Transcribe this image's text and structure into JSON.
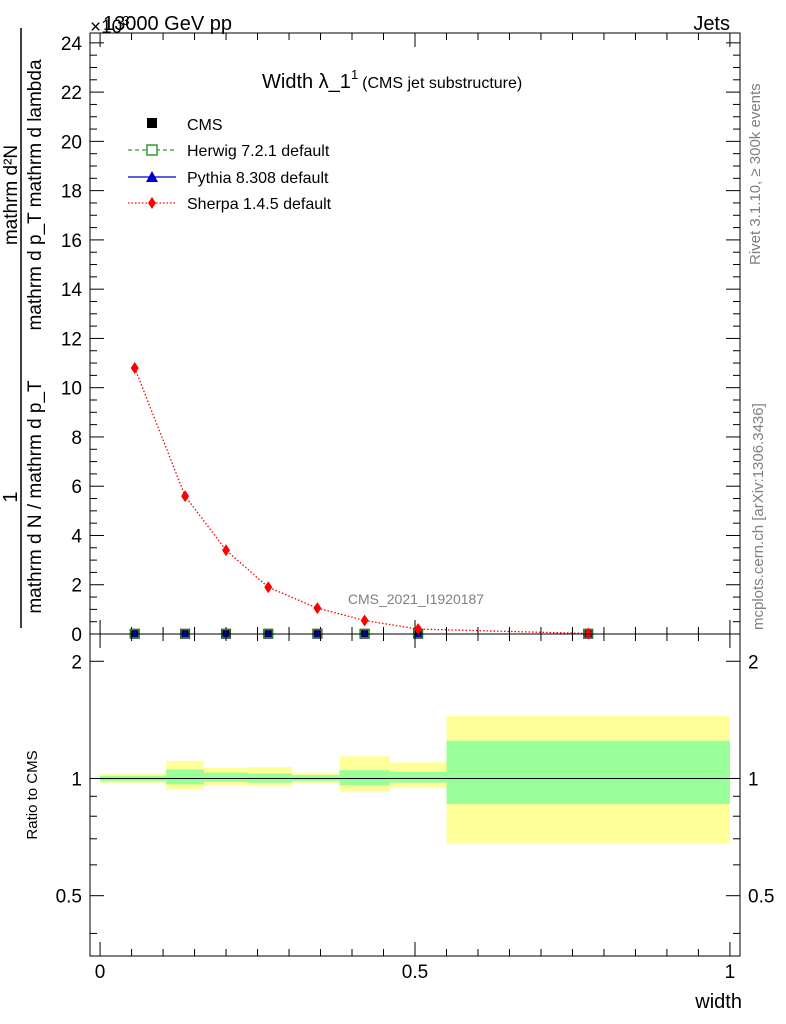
{
  "header": {
    "energy": "13000 GeV pp",
    "category": "Jets",
    "exponent": "×10",
    "exponent_power": "3"
  },
  "side_labels": {
    "rivet": "Rivet 3.1.10, ≥ 300k events",
    "mcplots": "mcplots.cern.ch [arXiv:1306.3436]"
  },
  "watermark": "CMS_2021_I1920187",
  "colors": {
    "cms": "#000000",
    "herwig": "#339933",
    "pythia": "#0000cc",
    "sherpa": "#ff0000",
    "band_inner": "#99ff99",
    "band_outer": "#ffff99"
  },
  "chart_data": [
    {
      "type": "line",
      "title": "Width λ_1",
      "title_sup": "1",
      "title_note": "(CMS jet substructure)",
      "ylabel_num": "1",
      "ylabel_den": "mathrm d N / mathrm d p_T",
      "ylabel_num2": "mathrm d²N",
      "ylabel_den2": "mathrm d p_T mathrm d lambda",
      "xlim": [
        -0.016,
        1.016
      ],
      "ylim": [
        0,
        24.4
      ],
      "yticks": [
        0,
        2,
        4,
        6,
        8,
        10,
        12,
        14,
        16,
        18,
        20,
        22,
        24
      ],
      "ytick_labels": [
        "0",
        "2",
        "4",
        "6",
        "8",
        "10",
        "12",
        "14",
        "16",
        "18",
        "20",
        "22",
        "24"
      ],
      "legend": [
        {
          "name": "CMS",
          "style": "square"
        },
        {
          "name": "Herwig 7.2.1 default",
          "style": "open-square-dashed"
        },
        {
          "name": "Pythia 8.308 default",
          "style": "triangle-solid"
        },
        {
          "name": "Sherpa 1.4.5 default",
          "style": "diamond-dotted"
        }
      ],
      "x": [
        0.055,
        0.135,
        0.2,
        0.267,
        0.345,
        0.42,
        0.505,
        0.775
      ],
      "series": [
        {
          "name": "CMS",
          "values": [
            0.01,
            0.01,
            0.01,
            0.01,
            0.01,
            0.01,
            0.01,
            0.01
          ]
        },
        {
          "name": "Herwig 7.2.1 default",
          "values": [
            0.01,
            0.01,
            0.01,
            0.01,
            0.01,
            0.01,
            0.01,
            0.01
          ]
        },
        {
          "name": "Pythia 8.308 default",
          "values": [
            0.01,
            0.01,
            0.01,
            0.01,
            0.01,
            0.01,
            0.01,
            0.01
          ]
        },
        {
          "name": "Sherpa 1.4.5 default",
          "values": [
            10.8,
            5.6,
            3.4,
            1.9,
            1.05,
            0.55,
            0.2,
            0.02
          ]
        }
      ]
    },
    {
      "type": "area",
      "ylabel": "Ratio to CMS",
      "xlabel": "width",
      "xlim": [
        -0.016,
        1.016
      ],
      "ylim": [
        0.35,
        2.35
      ],
      "xticks": [
        0,
        0.5,
        1
      ],
      "xtick_labels": [
        "0",
        "0.5",
        "1"
      ],
      "yticks": [
        0.5,
        1,
        2
      ],
      "ytick_labels": [
        "0.5",
        "1",
        "2"
      ],
      "bins": [
        0.0,
        0.105,
        0.165,
        0.235,
        0.305,
        0.38,
        0.46,
        0.55,
        1.0
      ],
      "inner_band": [
        [
          0.985,
          1.015
        ],
        [
          0.965,
          1.055
        ],
        [
          0.98,
          1.035
        ],
        [
          0.975,
          1.03
        ],
        [
          0.985,
          1.02
        ],
        [
          0.96,
          1.05
        ],
        [
          0.975,
          1.04
        ],
        [
          0.86,
          1.25
        ]
      ],
      "outer_band": [
        [
          0.975,
          1.03
        ],
        [
          0.935,
          1.11
        ],
        [
          0.96,
          1.065
        ],
        [
          0.955,
          1.07
        ],
        [
          0.975,
          1.035
        ],
        [
          0.925,
          1.14
        ],
        [
          0.945,
          1.1
        ],
        [
          0.68,
          1.45
        ]
      ]
    }
  ]
}
